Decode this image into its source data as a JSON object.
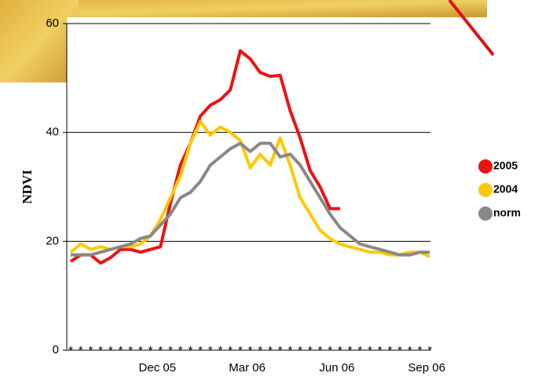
{
  "chart_data": {
    "type": "line",
    "y_label": "NDVI",
    "categories": [
      null,
      null,
      null,
      null,
      null,
      null,
      null,
      null,
      null,
      "Dec 05",
      null,
      null,
      null,
      null,
      null,
      null,
      null,
      null,
      "Mar 06",
      null,
      null,
      null,
      null,
      null,
      null,
      null,
      null,
      "Jun 06",
      null,
      null,
      null,
      null,
      null,
      null,
      null,
      null,
      "Sep 06"
    ],
    "series": [
      {
        "name": "2005",
        "color": "#ee1111",
        "values": [
          16.3,
          17.5,
          17.5,
          16,
          17,
          18.5,
          18.5,
          18,
          18.5,
          19,
          27,
          34,
          38,
          43,
          45,
          46,
          47.8,
          55,
          53.5,
          51,
          50.3,
          50.5,
          44,
          39,
          33,
          30,
          26,
          26,
          null,
          null,
          null,
          null,
          null,
          null,
          null,
          null,
          null
        ]
      },
      {
        "name": "2004",
        "color": "#ffc800",
        "values": [
          18,
          19.5,
          18.5,
          19,
          18.5,
          19,
          19,
          19.5,
          21,
          24,
          28,
          32,
          38,
          42,
          39.5,
          41,
          40,
          38.5,
          33.5,
          36,
          34,
          39,
          34,
          28,
          25,
          22,
          20.5,
          19.5,
          19,
          18.5,
          18,
          18,
          17.5,
          17.5,
          18,
          18,
          17.2
        ]
      },
      {
        "name": "norm",
        "color": "#888888",
        "values": [
          17.5,
          17.5,
          17.5,
          18,
          18.5,
          19,
          19.5,
          20.5,
          21,
          23,
          25,
          28,
          29,
          31,
          34,
          35.5,
          37,
          38,
          36.5,
          38,
          38,
          35.5,
          36,
          34,
          31,
          28,
          25,
          22.5,
          21,
          19.5,
          19,
          18.5,
          18,
          17.5,
          17.5,
          18,
          18
        ]
      }
    ],
    "ylim": [
      0,
      60
    ],
    "yticks": [
      0,
      20,
      40,
      60
    ],
    "grid": true,
    "legend": "right"
  }
}
